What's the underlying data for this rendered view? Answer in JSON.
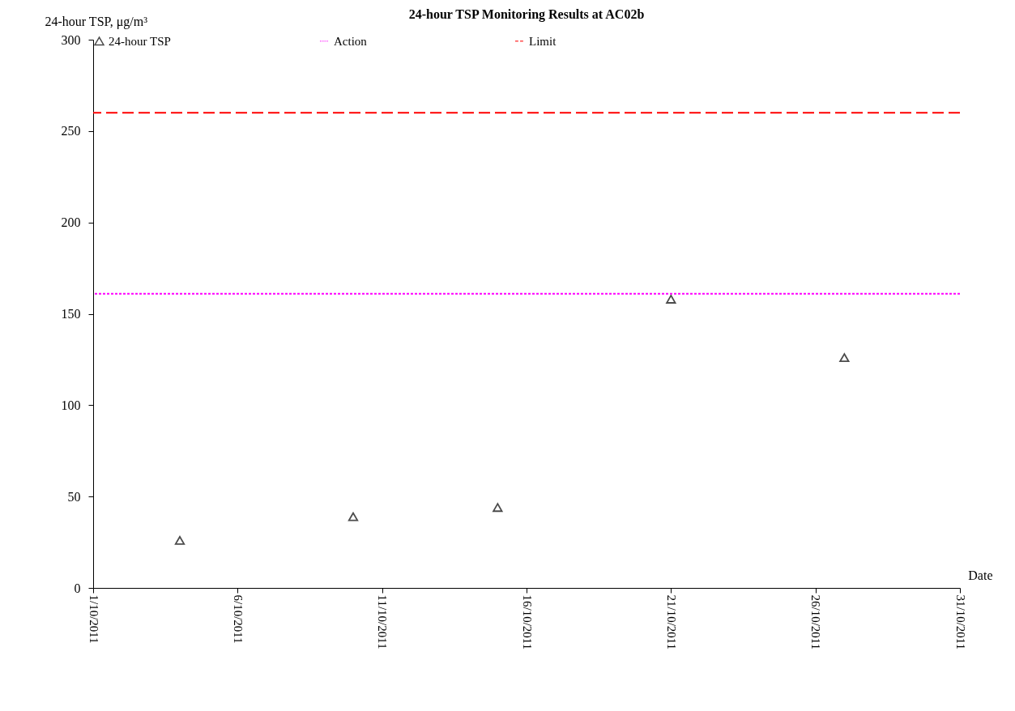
{
  "chart_data": {
    "type": "scatter",
    "title": "24-hour TSP Monitoring Results at AC02b",
    "xlabel": "Date",
    "ylabel": "24-hour TSP, μg/m³",
    "x": [
      "2011-10-04",
      "2011-10-10",
      "2011-10-15",
      "2011-10-21",
      "2011-10-27"
    ],
    "series": [
      {
        "name": "24-hour TSP",
        "color": "#000000",
        "values": [
          26,
          39,
          44,
          158,
          126
        ]
      }
    ],
    "xlim": [
      "2011-10-01",
      "2011-10-31"
    ],
    "xticks": [
      {
        "value": "2011-10-01",
        "label": "1/10/2011"
      },
      {
        "value": "2011-10-06",
        "label": "6/10/2011"
      },
      {
        "value": "2011-10-11",
        "label": "11/10/2011"
      },
      {
        "value": "2011-10-16",
        "label": "16/10/2011"
      },
      {
        "value": "2011-10-21",
        "label": "21/10/2011"
      },
      {
        "value": "2011-10-26",
        "label": "26/10/2011"
      },
      {
        "value": "2011-10-31",
        "label": "31/10/2011"
      }
    ],
    "ylim": [
      0,
      300
    ],
    "yticks": [
      0,
      50,
      100,
      150,
      200,
      250,
      300
    ],
    "ref_lines": [
      {
        "axis": "y",
        "value": 161,
        "label": "Action",
        "color": "#ff00ff",
        "line_style": "dotted"
      },
      {
        "axis": "y",
        "value": 260,
        "label": "Limit",
        "color": "#ff0000",
        "line_style": "dashed"
      }
    ],
    "legend": "top",
    "marker": "triangle"
  }
}
